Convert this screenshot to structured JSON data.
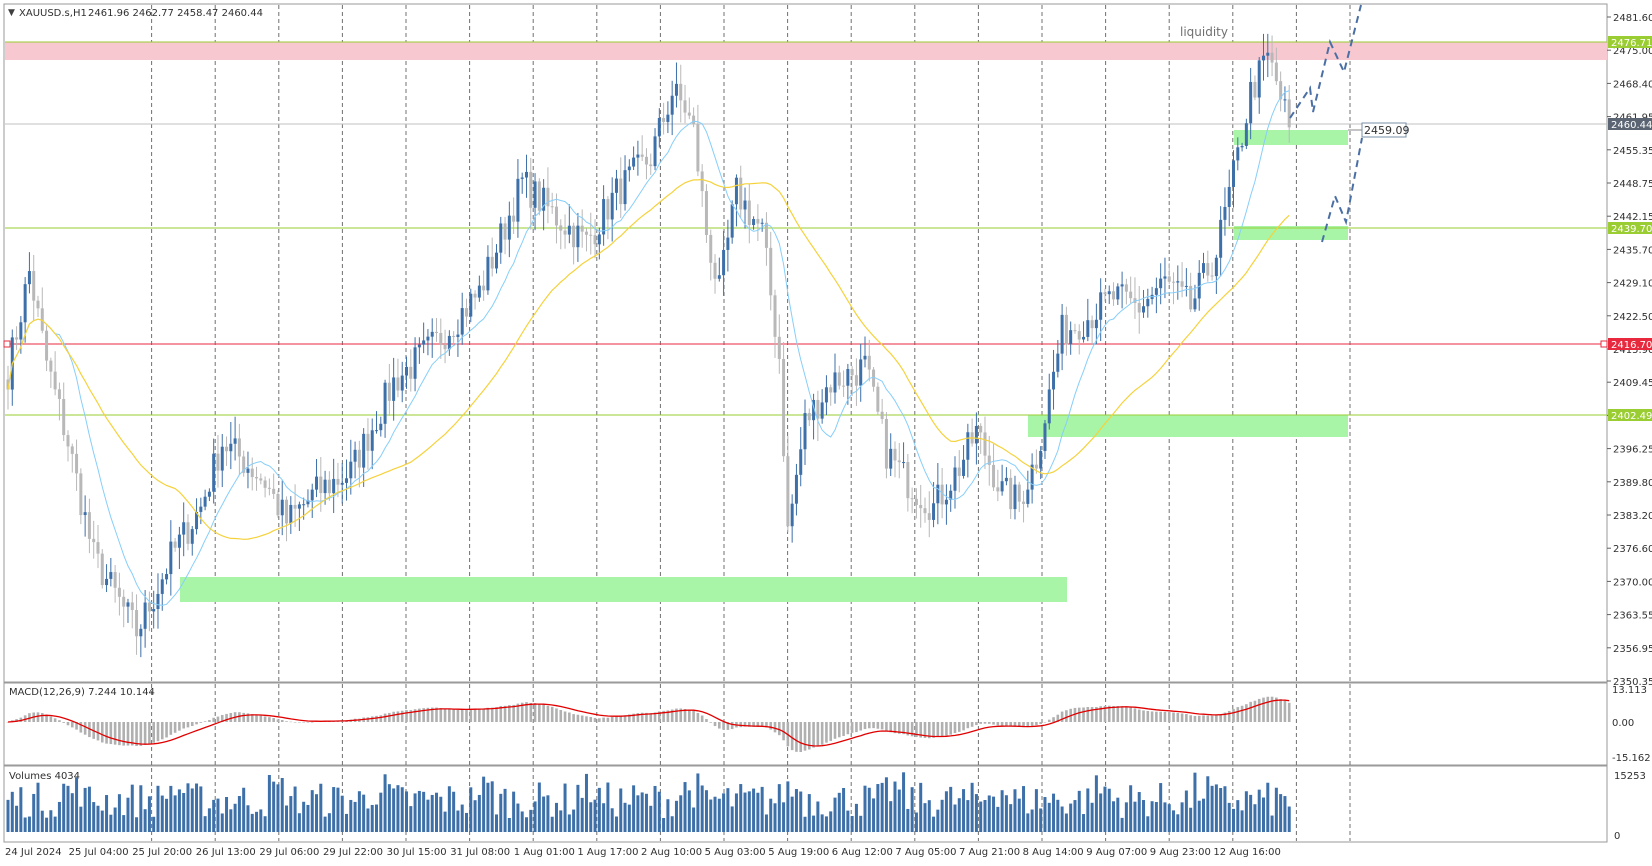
{
  "header": {
    "symbol": "XAUUSD.s,H1",
    "ohlc": "2461.96 2462.77 2458.47 2460.44"
  },
  "price_labels": [
    "2481.60",
    "2475.00",
    "2468.40",
    "2461.95",
    "2455.35",
    "2448.75",
    "2442.15",
    "2435.70",
    "2429.10",
    "2422.50",
    "2415.90",
    "2409.45",
    "2402.85",
    "2396.25",
    "2389.80",
    "2383.20",
    "2376.60",
    "2370.00",
    "2363.55",
    "2356.95",
    "2350.35"
  ],
  "level_badges": {
    "l1": "2476.71",
    "current": "2460.44",
    "l2": "2439.70",
    "l3": "2416.70",
    "l4": "2402.49"
  },
  "callout": "2459.09",
  "annotation": "liquidity",
  "macd": {
    "label": "MACD(12,26,9) 7.244 10.144",
    "scale": [
      "13.113",
      "0.00",
      "-15.162"
    ]
  },
  "volumes": {
    "label": "Volumes 4034",
    "scale": [
      "15253",
      "0"
    ]
  },
  "time_labels": [
    "24 Jul 2024",
    "25 Jul 04:00",
    "25 Jul 20:00",
    "26 Jul 13:00",
    "29 Jul 06:00",
    "29 Jul 22:00",
    "30 Jul 15:00",
    "31 Jul 08:00",
    "1 Aug 01:00",
    "1 Aug 17:00",
    "2 Aug 10:00",
    "5 Aug 03:00",
    "5 Aug 19:00",
    "6 Aug 12:00",
    "7 Aug 05:00",
    "7 Aug 21:00",
    "8 Aug 14:00",
    "9 Aug 07:00",
    "9 Aug 23:00",
    "12 Aug 16:00"
  ],
  "colors": {
    "bull": "#3d6fa8",
    "bear": "#b8b8b8",
    "ma_fast": "#87cefa",
    "ma_slow": "#f5d23c",
    "supply_zone": "#f8c8d0",
    "demand_zone": "#a8f5a8",
    "level_line": "#9acd32",
    "key_level": "#e8283c",
    "macd_signal": "#e00000",
    "projection": "#4a6fa5"
  },
  "chart_data": {
    "type": "candlestick",
    "symbol": "XAUUSD.s",
    "timeframe": "H1",
    "ylim": [
      2350.35,
      2484.5
    ],
    "levels": [
      2476.71,
      2439.7,
      2416.7,
      2402.49
    ],
    "zones": [
      {
        "kind": "supply",
        "from": 2473.5,
        "to": 2477.0
      },
      {
        "kind": "demand",
        "from": 2456.5,
        "to": 2459.3
      },
      {
        "kind": "demand",
        "from": 2437.4,
        "to": 2440.0
      },
      {
        "kind": "demand",
        "from": 2398.2,
        "to": 2402.5
      },
      {
        "kind": "demand",
        "from": 2365.3,
        "to": 2370.6
      }
    ],
    "anchors": [
      [
        0,
        2412
      ],
      [
        5,
        2432
      ],
      [
        9,
        2414
      ],
      [
        14,
        2398
      ],
      [
        20,
        2375
      ],
      [
        26,
        2366
      ],
      [
        30,
        2360
      ],
      [
        34,
        2367
      ],
      [
        38,
        2375
      ],
      [
        45,
        2385
      ],
      [
        50,
        2398
      ],
      [
        54,
        2395
      ],
      [
        60,
        2390
      ],
      [
        65,
        2382
      ],
      [
        72,
        2388
      ],
      [
        80,
        2392
      ],
      [
        90,
        2410
      ],
      [
        100,
        2418
      ],
      [
        110,
        2428
      ],
      [
        120,
        2450
      ],
      [
        128,
        2443
      ],
      [
        135,
        2438
      ],
      [
        142,
        2448
      ],
      [
        150,
        2455
      ],
      [
        155,
        2468
      ],
      [
        158,
        2465
      ],
      [
        160,
        2460
      ],
      [
        163,
        2440
      ],
      [
        166,
        2428
      ],
      [
        170,
        2448
      ],
      [
        176,
        2440
      ],
      [
        180,
        2415
      ],
      [
        182,
        2380
      ],
      [
        186,
        2402
      ],
      [
        192,
        2410
      ],
      [
        200,
        2413
      ],
      [
        205,
        2396
      ],
      [
        210,
        2390
      ],
      [
        216,
        2385
      ],
      [
        222,
        2393
      ],
      [
        226,
        2400
      ],
      [
        232,
        2388
      ],
      [
        236,
        2386
      ],
      [
        240,
        2395
      ],
      [
        246,
        2420
      ],
      [
        252,
        2423
      ],
      [
        258,
        2427
      ],
      [
        264,
        2425
      ],
      [
        270,
        2430
      ],
      [
        276,
        2425
      ],
      [
        282,
        2436
      ],
      [
        287,
        2455
      ],
      [
        290,
        2468
      ],
      [
        294,
        2475
      ],
      [
        296,
        2470
      ],
      [
        299,
        2461
      ]
    ]
  }
}
